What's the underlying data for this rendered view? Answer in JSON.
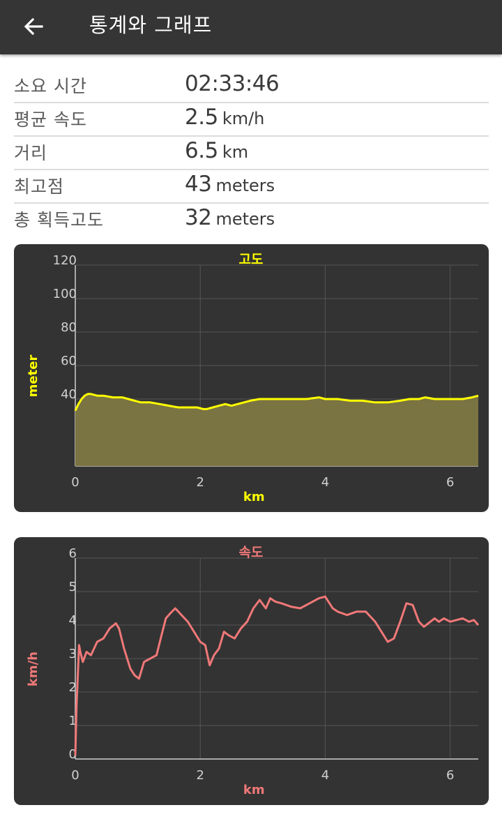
{
  "appbar": {
    "title": "통계와 그래프",
    "back_icon": "arrow-left-icon"
  },
  "stats": [
    {
      "label": "소요 시간",
      "value": "02:33:46",
      "unit": ""
    },
    {
      "label": "평균 속도",
      "value": "2.5",
      "unit": "km/h"
    },
    {
      "label": "거리",
      "value": "6.5",
      "unit": "km"
    },
    {
      "label": "최고점",
      "value": "43",
      "unit": "meters"
    },
    {
      "label": "총 획득고도",
      "value": "32",
      "unit": "meters"
    }
  ],
  "chart_data": [
    {
      "type": "area",
      "title": "고도",
      "xlabel": "km",
      "ylabel": "meter",
      "xlim": [
        0,
        6.45
      ],
      "ylim": [
        0,
        120
      ],
      "xticks": [
        0,
        2,
        4,
        6
      ],
      "yticks": [
        40,
        60,
        80,
        100,
        120
      ],
      "grid": true,
      "color": "#ffff00",
      "fill_color": "#7a7342",
      "series": [
        {
          "x": [
            0,
            0.05,
            0.1,
            0.15,
            0.2,
            0.25,
            0.35,
            0.45,
            0.6,
            0.75,
            0.85,
            0.95,
            1.05,
            1.2,
            1.35,
            1.5,
            1.65,
            1.8,
            1.95,
            2.05,
            2.1,
            2.2,
            2.3,
            2.4,
            2.5,
            2.6,
            2.7,
            2.8,
            2.95,
            3.1,
            3.3,
            3.5,
            3.7,
            3.9,
            4.0,
            4.2,
            4.4,
            4.6,
            4.8,
            5.0,
            5.2,
            5.35,
            5.5,
            5.6,
            5.75,
            5.9,
            6.05,
            6.2,
            6.35,
            6.45
          ],
          "y": [
            33,
            37,
            40,
            42,
            43,
            43,
            42,
            42,
            41,
            41,
            40,
            39,
            38,
            38,
            37,
            36,
            35,
            35,
            35,
            34,
            34,
            35,
            36,
            37,
            36,
            37,
            38,
            39,
            40,
            40,
            40,
            40,
            40,
            41,
            40,
            40,
            39,
            39,
            38,
            38,
            39,
            40,
            40,
            41,
            40,
            40,
            40,
            40,
            41,
            42
          ]
        }
      ]
    },
    {
      "type": "line",
      "title": "속도",
      "xlabel": "km",
      "ylabel": "km/h",
      "xlim": [
        0,
        6.45
      ],
      "ylim": [
        0,
        6
      ],
      "xticks": [
        0,
        2,
        4,
        6
      ],
      "yticks": [
        0,
        1,
        2,
        3,
        4,
        5,
        6
      ],
      "grid": true,
      "color": "#f07878",
      "series": [
        {
          "x": [
            0,
            0.02,
            0.04,
            0.06,
            0.08,
            0.12,
            0.18,
            0.25,
            0.35,
            0.45,
            0.55,
            0.65,
            0.7,
            0.78,
            0.88,
            0.95,
            1.02,
            1.1,
            1.2,
            1.3,
            1.38,
            1.45,
            1.52,
            1.6,
            1.7,
            1.8,
            1.9,
            2.0,
            2.08,
            2.15,
            2.22,
            2.3,
            2.38,
            2.45,
            2.55,
            2.65,
            2.75,
            2.85,
            2.95,
            3.05,
            3.12,
            3.2,
            3.3,
            3.45,
            3.6,
            3.75,
            3.9,
            4.0,
            4.12,
            4.2,
            4.35,
            4.5,
            4.65,
            4.8,
            4.9,
            5.0,
            5.1,
            5.2,
            5.3,
            5.4,
            5.5,
            5.58,
            5.65,
            5.75,
            5.82,
            5.9,
            6.0,
            6.1,
            6.2,
            6.3,
            6.38,
            6.45
          ],
          "y": [
            0.1,
            1.6,
            2.5,
            3.4,
            3.2,
            2.9,
            3.2,
            3.1,
            3.5,
            3.6,
            3.9,
            4.05,
            3.9,
            3.3,
            2.7,
            2.5,
            2.4,
            2.9,
            3.0,
            3.1,
            3.7,
            4.2,
            4.35,
            4.5,
            4.3,
            4.1,
            3.8,
            3.5,
            3.4,
            2.8,
            3.1,
            3.3,
            3.8,
            3.7,
            3.6,
            3.9,
            4.1,
            4.5,
            4.75,
            4.5,
            4.8,
            4.7,
            4.65,
            4.55,
            4.5,
            4.65,
            4.8,
            4.85,
            4.5,
            4.4,
            4.3,
            4.4,
            4.4,
            4.1,
            3.8,
            3.5,
            3.6,
            4.1,
            4.65,
            4.6,
            4.1,
            3.95,
            4.05,
            4.2,
            4.1,
            4.2,
            4.1,
            4.15,
            4.2,
            4.1,
            4.15,
            4.0
          ]
        }
      ]
    }
  ]
}
